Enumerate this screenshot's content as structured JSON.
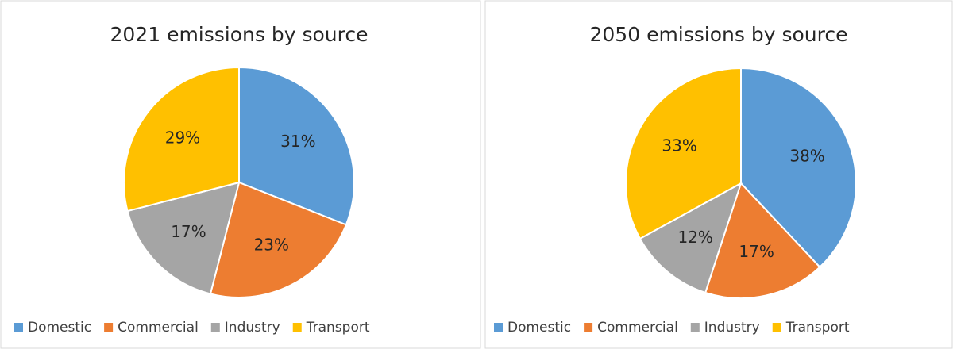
{
  "chart_data": [
    {
      "type": "pie",
      "title": "2021 emissions by source",
      "categories": [
        "Domestic",
        "Commercial",
        "Industry",
        "Transport"
      ],
      "values": [
        31,
        23,
        17,
        29
      ],
      "value_labels": [
        "31%",
        "23%",
        "17%",
        "29%"
      ],
      "colors": [
        "#5b9bd5",
        "#ed7d31",
        "#a5a5a5",
        "#ffc000"
      ],
      "legend": "bottom"
    },
    {
      "type": "pie",
      "title": "2050 emissions by source",
      "categories": [
        "Domestic",
        "Commercial",
        "Industry",
        "Transport"
      ],
      "values": [
        38,
        17,
        12,
        33
      ],
      "value_labels": [
        "38%",
        "17%",
        "12%",
        "33%"
      ],
      "colors": [
        "#5b9bd5",
        "#ed7d31",
        "#a5a5a5",
        "#ffc000"
      ],
      "legend": "bottom"
    }
  ]
}
